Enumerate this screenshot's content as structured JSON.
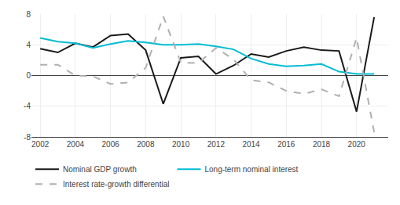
{
  "chart_data": {
    "type": "line",
    "x": [
      2002,
      2003,
      2004,
      2005,
      2006,
      2007,
      2008,
      2009,
      2010,
      2011,
      2012,
      2013,
      2014,
      2015,
      2016,
      2017,
      2018,
      2019,
      2020,
      2021
    ],
    "series": [
      {
        "name": "Nominal GDP growth",
        "color": "#1a1a1a",
        "line_style": "solid",
        "values": [
          3.5,
          3.0,
          4.2,
          3.7,
          5.2,
          5.4,
          3.3,
          -3.7,
          2.3,
          2.5,
          0.2,
          1.3,
          2.8,
          2.4,
          3.2,
          3.7,
          3.3,
          3.2,
          -4.7,
          7.6
        ]
      },
      {
        "name": "Long-term nominal interest",
        "color": "#00bcd4",
        "line_style": "solid",
        "values": [
          4.9,
          4.4,
          4.2,
          3.6,
          4.1,
          4.5,
          4.3,
          4.0,
          4.0,
          4.1,
          3.8,
          3.4,
          2.2,
          1.5,
          1.2,
          1.3,
          1.5,
          0.5,
          0.2,
          0.2
        ]
      },
      {
        "name": "Interest rate-growth differential",
        "color": "#b0b0b0",
        "line_style": "dashed",
        "values": [
          1.4,
          1.4,
          0.0,
          -0.1,
          -1.1,
          -0.9,
          1.0,
          7.7,
          1.7,
          1.6,
          3.6,
          2.1,
          -0.6,
          -0.9,
          -2.0,
          -2.4,
          -1.8,
          -2.7,
          4.9,
          -7.4
        ]
      }
    ],
    "xlim": [
      2001.5,
      2021.8
    ],
    "xticks": [
      2002,
      2004,
      2006,
      2008,
      2010,
      2012,
      2014,
      2016,
      2018,
      2020
    ],
    "ylim": [
      -8,
      8
    ],
    "yticks": [
      -8,
      -4,
      0,
      4,
      8
    ],
    "grid": true,
    "legend": "bottom"
  }
}
